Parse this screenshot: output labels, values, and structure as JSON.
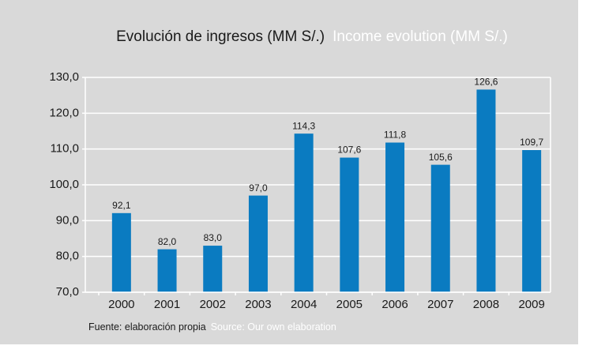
{
  "chart_data": {
    "type": "bar",
    "title": "Evolución de ingresos (MM S/.)",
    "subtitle": "Income evolution (MM S/.)",
    "source": "Fuente: elaboración propia",
    "source_translation": "Source: Our own elaboration",
    "categories": [
      "2000",
      "2001",
      "2002",
      "2003",
      "2004",
      "2005",
      "2006",
      "2007",
      "2008",
      "2009"
    ],
    "values": [
      92.1,
      82.0,
      83.0,
      97.0,
      114.3,
      107.6,
      111.8,
      105.6,
      126.6,
      109.7
    ],
    "value_labels": [
      "92,1",
      "82,0",
      "83,0",
      "97,0",
      "114,3",
      "107,6",
      "111,8",
      "105,6",
      "126,6",
      "109,7"
    ],
    "color": "#0a7bc1",
    "ylim": [
      70,
      130
    ],
    "yticks": [
      {
        "value": 70,
        "label": "70,0"
      },
      {
        "value": 80,
        "label": "80,0"
      },
      {
        "value": 90,
        "label": "90,0"
      },
      {
        "value": 100,
        "label": "100,0"
      },
      {
        "value": 110,
        "label": "110,0"
      },
      {
        "value": 120,
        "label": "120,0"
      },
      {
        "value": 130,
        "label": "130,0"
      }
    ],
    "grid": true
  }
}
